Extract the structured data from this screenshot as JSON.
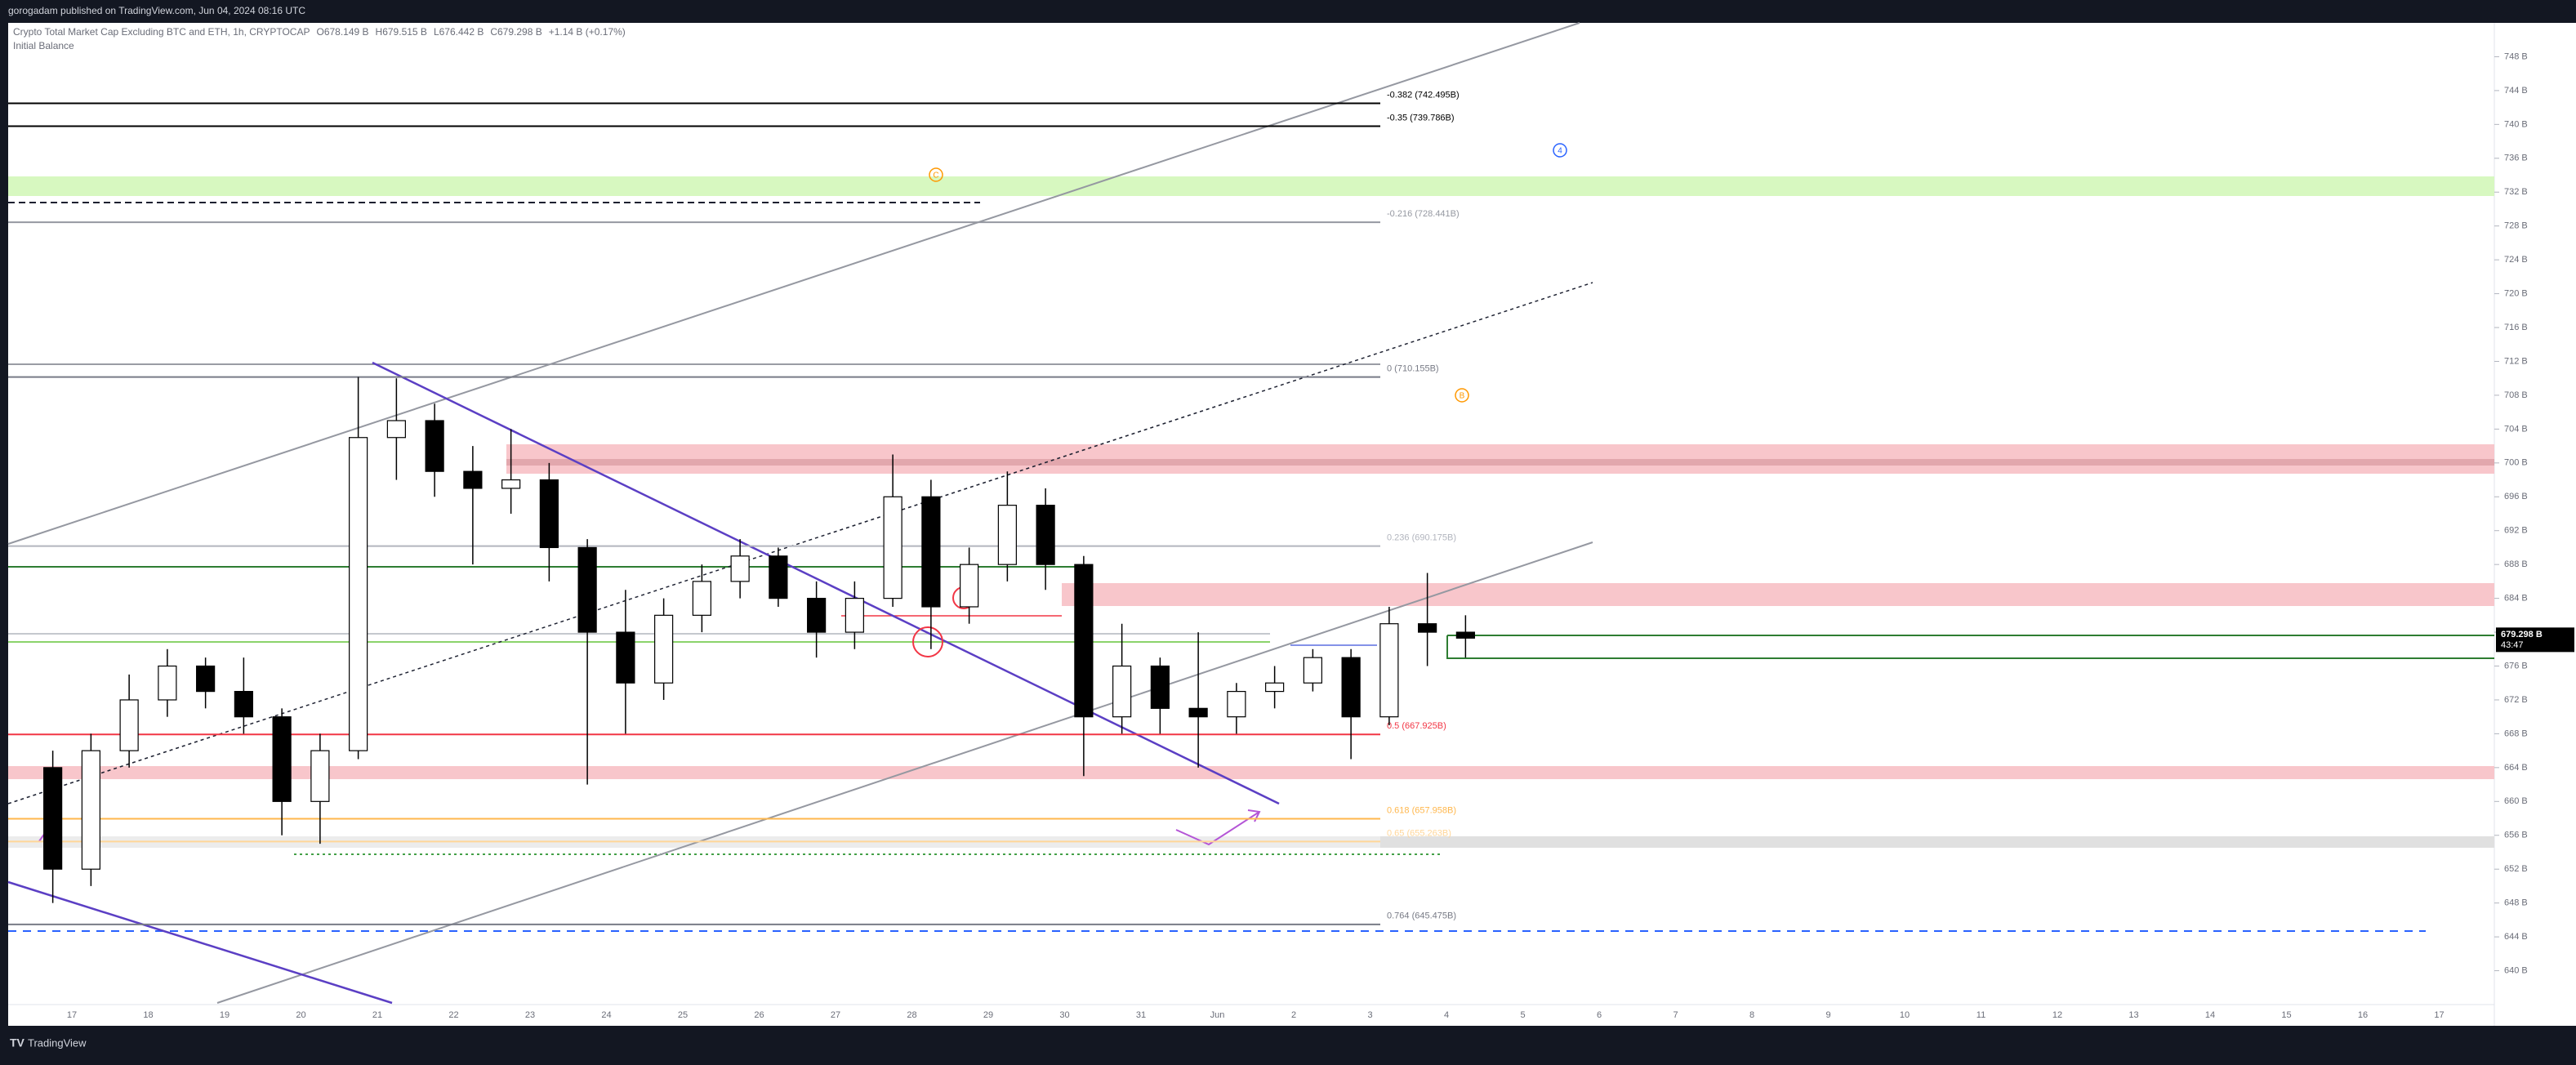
{
  "header": {
    "author_line": "gorogadam published on TradingView.com, Jun 04, 2024 08:16 UTC",
    "symbol": "Crypto Total Market Cap Excluding BTC and ETH, 1h, CRYPTOCAP",
    "ohlc": [
      "O678.149 B",
      "H679.515 B",
      "L676.442 B",
      "C679.298 B",
      "+1.14 B (+0.17%)"
    ],
    "indicator": "Initial Balance"
  },
  "wave_labels": [
    "C",
    "B",
    "4"
  ],
  "footer": "TradingView",
  "chart_data": {
    "type": "candlestick",
    "categories": [
      null,
      null,
      "17",
      null,
      "18",
      null,
      "19",
      null,
      "20",
      null,
      "21",
      null,
      "22",
      null,
      "23",
      null,
      "24",
      null,
      "25",
      null,
      "26",
      null,
      "27",
      null,
      "28",
      null,
      "29",
      null,
      "30",
      null,
      "31",
      null,
      "Jun",
      null,
      "2",
      null,
      "3",
      null,
      "4",
      null,
      "5",
      null,
      "6",
      null,
      "7",
      null,
      "8",
      null,
      "9",
      null,
      "10",
      null,
      "11",
      null,
      "12",
      null,
      "13",
      null,
      "14",
      null,
      "15",
      null,
      "16",
      null,
      "17",
      null
    ],
    "open": [
      null,
      664,
      652,
      666,
      672,
      676,
      673,
      670,
      660,
      666,
      703,
      705,
      699,
      697,
      698,
      690,
      680,
      674,
      682,
      686,
      689,
      684,
      680,
      684,
      696,
      683,
      688,
      695,
      688,
      670,
      676,
      671,
      670,
      673,
      674,
      677,
      670,
      681,
      680,
      null,
      null,
      null,
      null,
      null,
      null,
      null,
      null,
      null,
      null,
      null,
      null,
      null,
      null,
      null,
      null,
      null,
      null,
      null,
      null,
      null,
      null,
      null,
      null,
      null,
      null,
      null
    ],
    "high": [
      null,
      666,
      668,
      675,
      678,
      677,
      677,
      671,
      668,
      710.155,
      710,
      707,
      702,
      704,
      700,
      691,
      685,
      684,
      688,
      691,
      690,
      686,
      686,
      701,
      698,
      690,
      699,
      697,
      689,
      681,
      677,
      680,
      674,
      676,
      678,
      678,
      683,
      687,
      682,
      null,
      null,
      null,
      null,
      null,
      null,
      null,
      null,
      null,
      null,
      null,
      null,
      null,
      null,
      null,
      null,
      null,
      null,
      null,
      null,
      null,
      null,
      null,
      null,
      null,
      null,
      null
    ],
    "low": [
      null,
      648,
      650,
      664,
      670,
      671,
      668,
      656,
      655,
      665,
      698,
      696,
      688,
      694,
      686,
      662,
      668,
      672,
      680,
      684,
      683,
      677,
      678,
      683,
      678,
      681,
      686,
      685,
      663,
      668,
      668,
      664,
      668,
      671,
      673,
      665,
      669,
      676,
      677,
      null,
      null,
      null,
      null,
      null,
      null,
      null,
      null,
      null,
      null,
      null,
      null,
      null,
      null,
      null,
      null,
      null,
      null,
      null,
      null,
      null,
      null,
      null,
      null,
      null,
      null,
      null
    ],
    "close": [
      null,
      652,
      666,
      672,
      676,
      673,
      670,
      660,
      666,
      703,
      705,
      699,
      697,
      698,
      690,
      680,
      674,
      682,
      686,
      689,
      684,
      680,
      684,
      696,
      683,
      688,
      695,
      688,
      670,
      676,
      671,
      670,
      673,
      674,
      677,
      670,
      681,
      680,
      679.298,
      null,
      null,
      null,
      null,
      null,
      null,
      null,
      null,
      null,
      null,
      null,
      null,
      null,
      null,
      null,
      null,
      null,
      null,
      null,
      null,
      null,
      null,
      null,
      null,
      null,
      null,
      null
    ],
    "up_color": "#ffffff",
    "down_color": "#000000",
    "ylim": [
      636,
      752
    ],
    "yticks": [
      {
        "value": 748,
        "label": "748 B"
      },
      {
        "value": 744,
        "label": "744 B"
      },
      {
        "value": 740,
        "label": "740 B"
      },
      {
        "value": 736,
        "label": "736 B"
      },
      {
        "value": 732,
        "label": "732 B"
      },
      {
        "value": 728,
        "label": "728 B"
      },
      {
        "value": 724,
        "label": "724 B"
      },
      {
        "value": 720,
        "label": "720 B"
      },
      {
        "value": 716,
        "label": "716 B"
      },
      {
        "value": 712,
        "label": "712 B"
      },
      {
        "value": 708,
        "label": "708 B"
      },
      {
        "value": 704,
        "label": "704 B"
      },
      {
        "value": 700,
        "label": "700 B"
      },
      {
        "value": 696,
        "label": "696 B"
      },
      {
        "value": 692,
        "label": "692 B"
      },
      {
        "value": 688,
        "label": "688 B"
      },
      {
        "value": 684,
        "label": "684 B"
      },
      {
        "value": 680,
        "label": "680 B"
      },
      {
        "value": 676,
        "label": "676 B"
      },
      {
        "value": 672,
        "label": "672 B"
      },
      {
        "value": 668,
        "label": "668 B"
      },
      {
        "value": 664,
        "label": "664 B"
      },
      {
        "value": 660,
        "label": "660 B"
      },
      {
        "value": 656,
        "label": "656 B"
      },
      {
        "value": 652,
        "label": "652 B"
      },
      {
        "value": 648,
        "label": "648 B"
      },
      {
        "value": 644,
        "label": "644 B"
      },
      {
        "value": 640,
        "label": "640 B"
      }
    ],
    "price_label": {
      "value": 679.298,
      "label": "679.298 B"
    },
    "countdown": "43:47",
    "fib_levels": [
      {
        "label": "-0.382 (742.495B)",
        "price": 742.495,
        "color": "#000000"
      },
      {
        "label": "-0.35 (739.786B)",
        "price": 739.786,
        "color": "#000000"
      },
      {
        "label": "-0.216 (728.441B)",
        "price": 728.441,
        "color": "#9598a1"
      },
      {
        "label": "0 (710.155B)",
        "price": 710.155,
        "color": "#787b86"
      },
      {
        "label": "0.236 (690.175B)",
        "price": 690.175,
        "color": "#b2b5be"
      },
      {
        "label": "0.5 (667.925B)",
        "price": 667.925,
        "color": "#f23645"
      },
      {
        "label": "0.618 (657.958B)",
        "price": 657.958,
        "color": "#ffb74d"
      },
      {
        "label": "0.65 (655.263B)",
        "price": 655.263,
        "color": "#ffd699"
      },
      {
        "label": "0.764 (645.475B)",
        "price": 645.475,
        "color": "#787b86"
      }
    ]
  }
}
